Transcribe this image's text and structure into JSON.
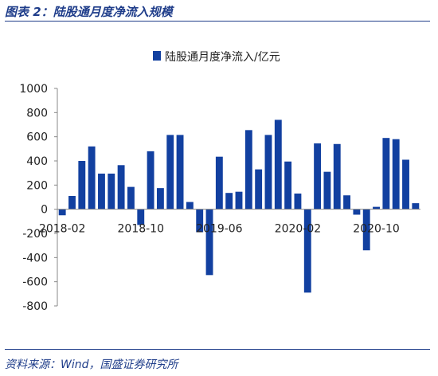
{
  "figure": {
    "title": "图表 2：陆股通月度净流入规模",
    "source": "资料来源：Wind，国盛证券研究所"
  },
  "chart_data": {
    "type": "bar",
    "title": "",
    "xlabel": "",
    "ylabel": "",
    "ylim": [
      -800,
      1000
    ],
    "ytick_step": 200,
    "grid": false,
    "legend_position": "top",
    "colors": {
      "bar": "#1240a0"
    },
    "x_tick_labels": [
      "2018-02",
      "2018-10",
      "2019-06",
      "2020-02",
      "2020-10"
    ],
    "x_tick_indices": [
      0,
      8,
      16,
      24,
      32
    ],
    "series": [
      {
        "name": "陆股通月度净流入/亿元",
        "values": [
          -50,
          110,
          400,
          520,
          295,
          295,
          365,
          185,
          -130,
          480,
          175,
          615,
          615,
          60,
          -190,
          -545,
          435,
          135,
          145,
          655,
          330,
          615,
          740,
          395,
          130,
          -690,
          545,
          310,
          540,
          115,
          -45,
          -340,
          20,
          590,
          580,
          410,
          50
        ]
      }
    ]
  }
}
